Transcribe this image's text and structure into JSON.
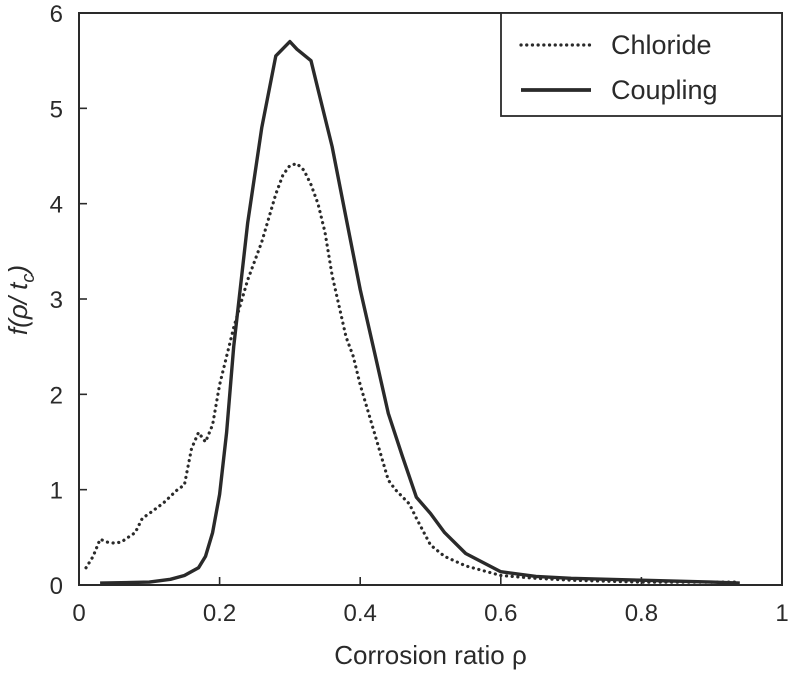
{
  "chart_data": {
    "type": "line",
    "xlabel": "Corrosion ratio ρ",
    "ylabel": "f(ρ/ t",
    "ylabel_sub": "c",
    "ylabel_close": ")",
    "xlim": [
      0,
      1
    ],
    "ylim": [
      0,
      6
    ],
    "xticks": [
      0,
      0.2,
      0.4,
      0.6,
      0.8,
      1
    ],
    "xtick_labels": [
      "0",
      "0.2",
      "0.4",
      "0.6",
      "0.8",
      "1"
    ],
    "yticks": [
      0,
      1,
      2,
      3,
      4,
      5,
      6
    ],
    "ytick_labels": [
      "0",
      "1",
      "2",
      "3",
      "4",
      "5",
      "6"
    ],
    "grid": false,
    "legend_position": "top-right",
    "series": [
      {
        "name": "Chloride",
        "style": "dotted",
        "color": "#2a2a2a",
        "x": [
          0.01,
          0.02,
          0.03,
          0.04,
          0.05,
          0.06,
          0.07,
          0.08,
          0.09,
          0.1,
          0.12,
          0.14,
          0.15,
          0.16,
          0.17,
          0.18,
          0.19,
          0.2,
          0.22,
          0.24,
          0.26,
          0.27,
          0.28,
          0.29,
          0.3,
          0.31,
          0.32,
          0.33,
          0.34,
          0.35,
          0.36,
          0.38,
          0.39,
          0.4,
          0.42,
          0.44,
          0.45,
          0.47,
          0.48,
          0.5,
          0.52,
          0.55,
          0.6,
          0.65,
          0.7,
          0.8,
          0.9,
          0.94
        ],
        "y": [
          0.18,
          0.3,
          0.48,
          0.45,
          0.44,
          0.45,
          0.5,
          0.55,
          0.7,
          0.75,
          0.86,
          1.0,
          1.05,
          1.43,
          1.6,
          1.5,
          1.68,
          2.1,
          2.7,
          3.2,
          3.6,
          3.85,
          4.1,
          4.3,
          4.4,
          4.42,
          4.35,
          4.2,
          4.0,
          3.7,
          3.25,
          2.6,
          2.4,
          2.1,
          1.6,
          1.1,
          1.0,
          0.85,
          0.7,
          0.42,
          0.3,
          0.2,
          0.1,
          0.07,
          0.05,
          0.03,
          0.03,
          0.03
        ]
      },
      {
        "name": "Coupling",
        "style": "solid",
        "color": "#2a2a2a",
        "x": [
          0.03,
          0.1,
          0.13,
          0.15,
          0.17,
          0.18,
          0.19,
          0.2,
          0.21,
          0.22,
          0.24,
          0.26,
          0.28,
          0.3,
          0.31,
          0.33,
          0.34,
          0.36,
          0.38,
          0.4,
          0.42,
          0.44,
          0.46,
          0.48,
          0.5,
          0.52,
          0.55,
          0.6,
          0.65,
          0.7,
          0.8,
          0.9,
          0.94
        ],
        "y": [
          0.02,
          0.03,
          0.06,
          0.1,
          0.18,
          0.3,
          0.55,
          0.95,
          1.6,
          2.5,
          3.8,
          4.8,
          5.55,
          5.7,
          5.62,
          5.5,
          5.2,
          4.6,
          3.85,
          3.1,
          2.45,
          1.8,
          1.35,
          0.92,
          0.75,
          0.55,
          0.33,
          0.14,
          0.09,
          0.07,
          0.05,
          0.03,
          0.02
        ]
      }
    ]
  }
}
